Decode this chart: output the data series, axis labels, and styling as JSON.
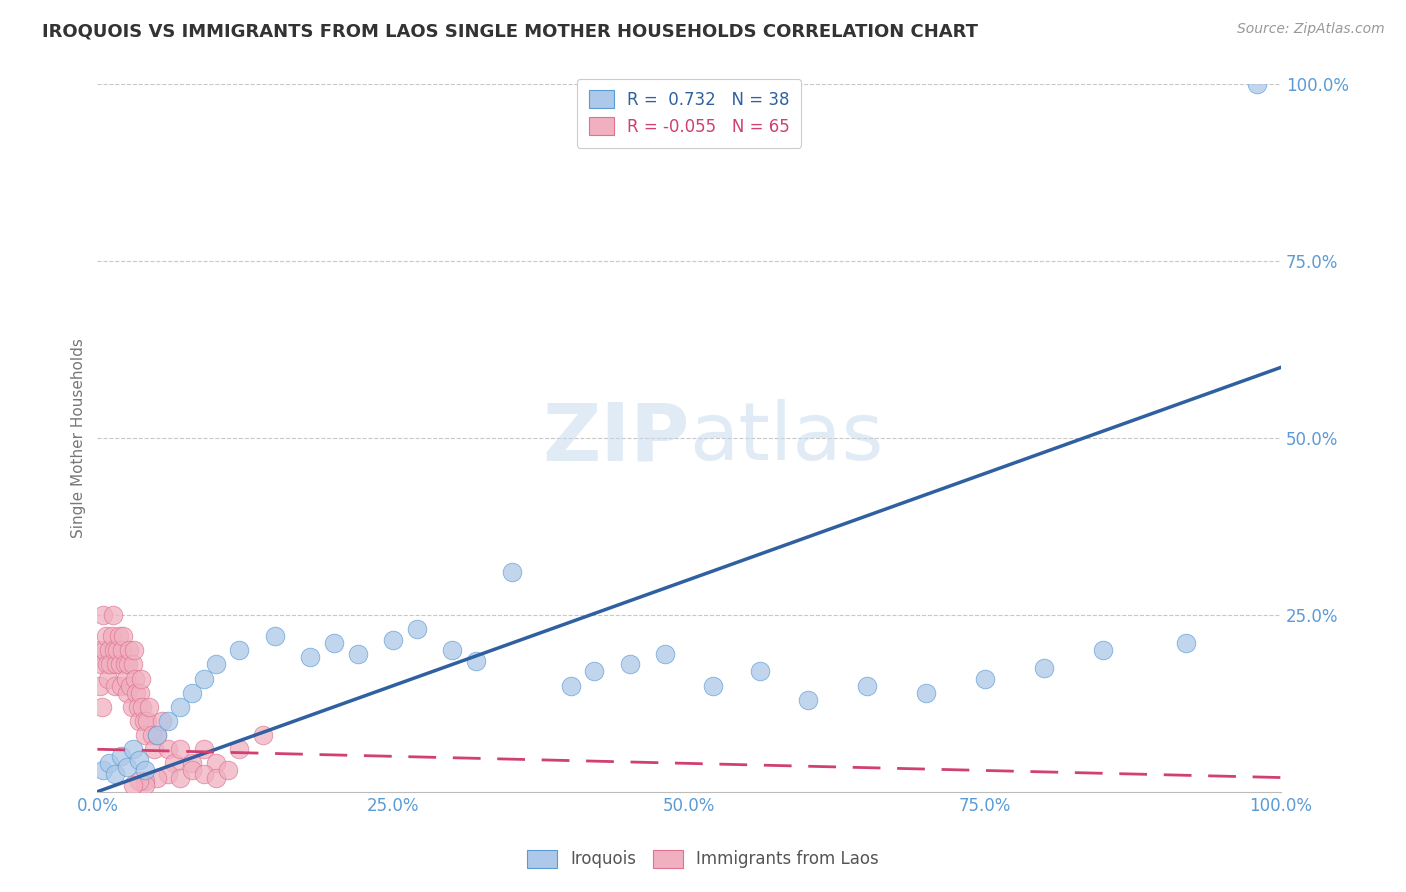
{
  "title": "IROQUOIS VS IMMIGRANTS FROM LAOS SINGLE MOTHER HOUSEHOLDS CORRELATION CHART",
  "source": "Source: ZipAtlas.com",
  "ylabel": "Single Mother Households",
  "watermark": "ZIPatlas",
  "iroquois_R": 0.732,
  "iroquois_N": 38,
  "laos_R": -0.055,
  "laos_N": 65,
  "iroquois_color": "#adc8e8",
  "iroquois_edge_color": "#5b9bd5",
  "iroquois_line_color": "#3060a0",
  "laos_color": "#f0b0c0",
  "laos_edge_color": "#e07090",
  "laos_line_color": "#d04070",
  "bg_color": "#ffffff",
  "grid_color": "#c8c8c8",
  "title_color": "#333333",
  "axis_label_color": "#5b9bd5",
  "iroquois_x": [
    0.005,
    0.01,
    0.015,
    0.02,
    0.025,
    0.03,
    0.035,
    0.04,
    0.05,
    0.06,
    0.07,
    0.08,
    0.09,
    0.1,
    0.12,
    0.15,
    0.18,
    0.2,
    0.22,
    0.25,
    0.27,
    0.3,
    0.32,
    0.35,
    0.4,
    0.42,
    0.45,
    0.48,
    0.52,
    0.56,
    0.6,
    0.65,
    0.7,
    0.75,
    0.8,
    0.85,
    0.92,
    0.98
  ],
  "iroquois_y": [
    0.03,
    0.04,
    0.025,
    0.05,
    0.035,
    0.06,
    0.045,
    0.03,
    0.08,
    0.1,
    0.12,
    0.14,
    0.16,
    0.18,
    0.2,
    0.22,
    0.19,
    0.21,
    0.195,
    0.215,
    0.23,
    0.2,
    0.185,
    0.31,
    0.15,
    0.17,
    0.18,
    0.195,
    0.15,
    0.17,
    0.13,
    0.15,
    0.14,
    0.16,
    0.175,
    0.2,
    0.21,
    1.0
  ],
  "laos_x": [
    0.001,
    0.002,
    0.003,
    0.004,
    0.005,
    0.006,
    0.007,
    0.008,
    0.009,
    0.01,
    0.011,
    0.012,
    0.013,
    0.014,
    0.015,
    0.016,
    0.017,
    0.018,
    0.019,
    0.02,
    0.021,
    0.022,
    0.023,
    0.024,
    0.025,
    0.026,
    0.027,
    0.028,
    0.029,
    0.03,
    0.031,
    0.032,
    0.033,
    0.034,
    0.035,
    0.036,
    0.037,
    0.038,
    0.039,
    0.04,
    0.042,
    0.044,
    0.046,
    0.048,
    0.05,
    0.055,
    0.06,
    0.065,
    0.07,
    0.08,
    0.09,
    0.1,
    0.12,
    0.14,
    0.06,
    0.07,
    0.08,
    0.09,
    0.1,
    0.11,
    0.05,
    0.04,
    0.04,
    0.035,
    0.03
  ],
  "laos_y": [
    0.2,
    0.15,
    0.18,
    0.12,
    0.25,
    0.2,
    0.22,
    0.18,
    0.16,
    0.2,
    0.18,
    0.22,
    0.25,
    0.2,
    0.15,
    0.18,
    0.2,
    0.22,
    0.18,
    0.15,
    0.2,
    0.22,
    0.18,
    0.16,
    0.14,
    0.18,
    0.2,
    0.15,
    0.12,
    0.18,
    0.2,
    0.16,
    0.14,
    0.12,
    0.1,
    0.14,
    0.16,
    0.12,
    0.1,
    0.08,
    0.1,
    0.12,
    0.08,
    0.06,
    0.08,
    0.1,
    0.06,
    0.04,
    0.06,
    0.04,
    0.06,
    0.04,
    0.06,
    0.08,
    0.025,
    0.02,
    0.03,
    0.025,
    0.02,
    0.03,
    0.02,
    0.015,
    0.01,
    0.015,
    0.01
  ],
  "iroquois_trendline_x": [
    0.0,
    1.0
  ],
  "iroquois_trendline_y": [
    0.0,
    0.6
  ],
  "laos_trendline_x": [
    0.0,
    1.0
  ],
  "laos_trendline_y": [
    0.06,
    0.02
  ],
  "xlim": [
    0.0,
    1.0
  ],
  "ylim": [
    0.0,
    1.0
  ],
  "xticks": [
    0.0,
    0.25,
    0.5,
    0.75,
    1.0
  ],
  "xtick_labels": [
    "0.0%",
    "25.0%",
    "50.0%",
    "75.0%",
    "100.0%"
  ],
  "yticks": [
    0.25,
    0.5,
    0.75,
    1.0
  ],
  "ytick_labels": [
    "25.0%",
    "50.0%",
    "75.0%",
    "100.0%"
  ]
}
